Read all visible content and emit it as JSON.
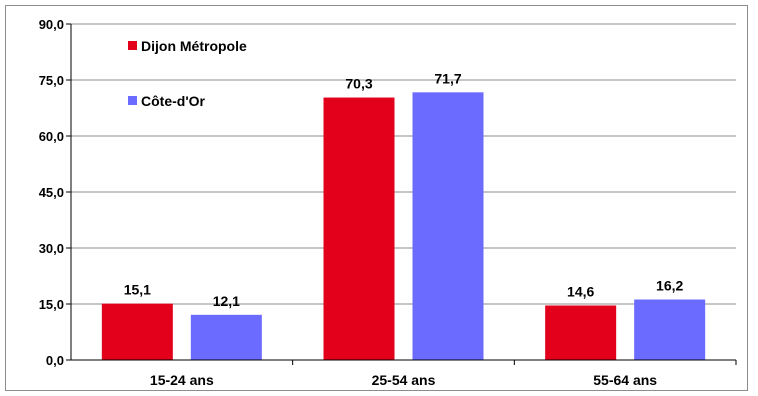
{
  "chart_data": {
    "type": "bar",
    "title": "",
    "xlabel": "",
    "ylabel": "",
    "categories": [
      "15-24 ans",
      "25-54 ans",
      "55-64 ans"
    ],
    "series": [
      {
        "name": "Dijon Métropole",
        "values": [
          15.1,
          70.3,
          14.6
        ],
        "labels": [
          "15,1",
          "70,3",
          "14,6"
        ],
        "color": "#e3001b"
      },
      {
        "name": "Côte-d'Or",
        "values": [
          12.1,
          71.7,
          16.2
        ],
        "labels": [
          "12,1",
          "71,7",
          "16,2"
        ],
        "color": "#6b6bff"
      }
    ],
    "ylim": [
      0,
      90
    ],
    "yticks": [
      0,
      15,
      30,
      45,
      60,
      75,
      90
    ],
    "ytick_labels": [
      "0,0",
      "15,0",
      "30,0",
      "45,0",
      "60,0",
      "75,0",
      "90,0"
    ],
    "grid": true,
    "legend_position": "top-left"
  }
}
